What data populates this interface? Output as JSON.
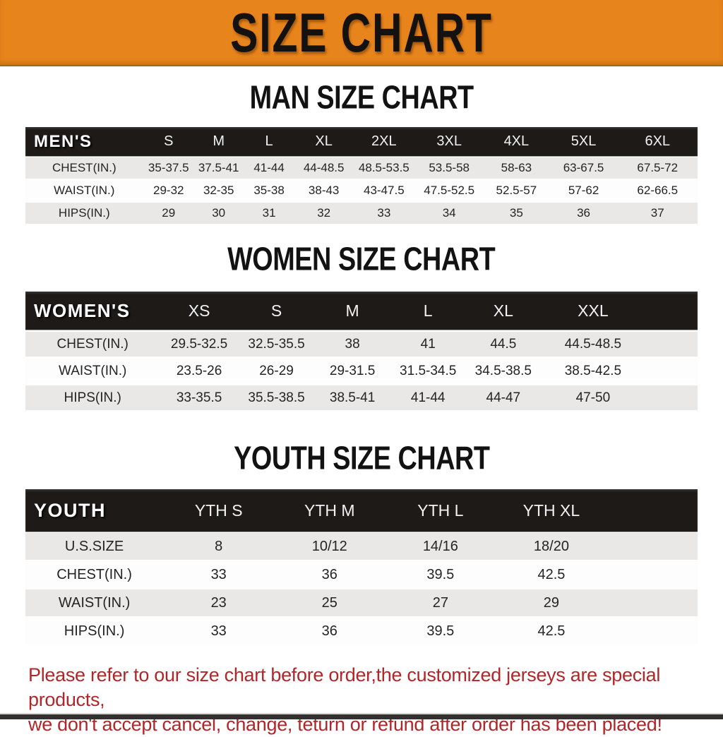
{
  "banner": {
    "title": "SIZE CHART"
  },
  "colors": {
    "banner_bg": "#E8841C",
    "header_bar": "#1D1A18",
    "row_shade": "#E9E8E6",
    "row_plain": "#FDFDFD",
    "footer_text": "#B2262A"
  },
  "sections": [
    {
      "heading": "MAN SIZE CHART",
      "table": {
        "label": "MEN'S",
        "columns": [
          "S",
          "M",
          "L",
          "XL",
          "2XL",
          "3XL",
          "4XL",
          "5XL",
          "6XL"
        ],
        "rows": [
          {
            "label": "CHEST(IN.)",
            "values": [
              "35-37.5",
              "37.5-41",
              "41-44",
              "44-48.5",
              "48.5-53.5",
              "53.5-58",
              "58-63",
              "63-67.5",
              "67.5-72"
            ]
          },
          {
            "label": "WAIST(IN.)",
            "values": [
              "29-32",
              "32-35",
              "35-38",
              "38-43",
              "43-47.5",
              "47.5-52.5",
              "52.5-57",
              "57-62",
              "62-66.5"
            ]
          },
          {
            "label": "HIPS(IN.)",
            "values": [
              "29",
              "30",
              "31",
              "32",
              "33",
              "34",
              "35",
              "36",
              "37"
            ]
          }
        ]
      }
    },
    {
      "heading": "WOMEN SIZE CHART",
      "table": {
        "label": "WOMEN'S",
        "columns": [
          "XS",
          "S",
          "M",
          "L",
          "XL",
          "XXL"
        ],
        "rows": [
          {
            "label": "CHEST(IN.)",
            "values": [
              "29.5-32.5",
              "32.5-35.5",
              "38",
              "41",
              "44.5",
              "44.5-48.5"
            ]
          },
          {
            "label": "WAIST(IN.)",
            "values": [
              "23.5-26",
              "26-29",
              "29-31.5",
              "31.5-34.5",
              "34.5-38.5",
              "38.5-42.5"
            ]
          },
          {
            "label": "HIPS(IN.)",
            "values": [
              "33-35.5",
              "35.5-38.5",
              "38.5-41",
              "41-44",
              "44-47",
              "47-50"
            ]
          }
        ]
      }
    },
    {
      "heading": "YOUTH SIZE CHART",
      "table": {
        "label": "YOUTH",
        "columns": [
          "YTH S",
          "YTH M",
          "YTH L",
          "YTH XL"
        ],
        "rows": [
          {
            "label": "U.S.SIZE",
            "values": [
              "8",
              "10/12",
              "14/16",
              "18/20"
            ]
          },
          {
            "label": "CHEST(IN.)",
            "values": [
              "33",
              "36",
              "39.5",
              "42.5"
            ]
          },
          {
            "label": "WAIST(IN.)",
            "values": [
              "23",
              "25",
              "27",
              "29"
            ]
          },
          {
            "label": "HIPS(IN.)",
            "values": [
              "33",
              "36",
              "39.5",
              "42.5"
            ]
          }
        ]
      }
    }
  ],
  "footer": {
    "lines": [
      "Please refer to our size chart before order,the customized jerseys are special products,",
      "we don't accept cancel, change, teturn or refund after order has been placed!"
    ]
  }
}
